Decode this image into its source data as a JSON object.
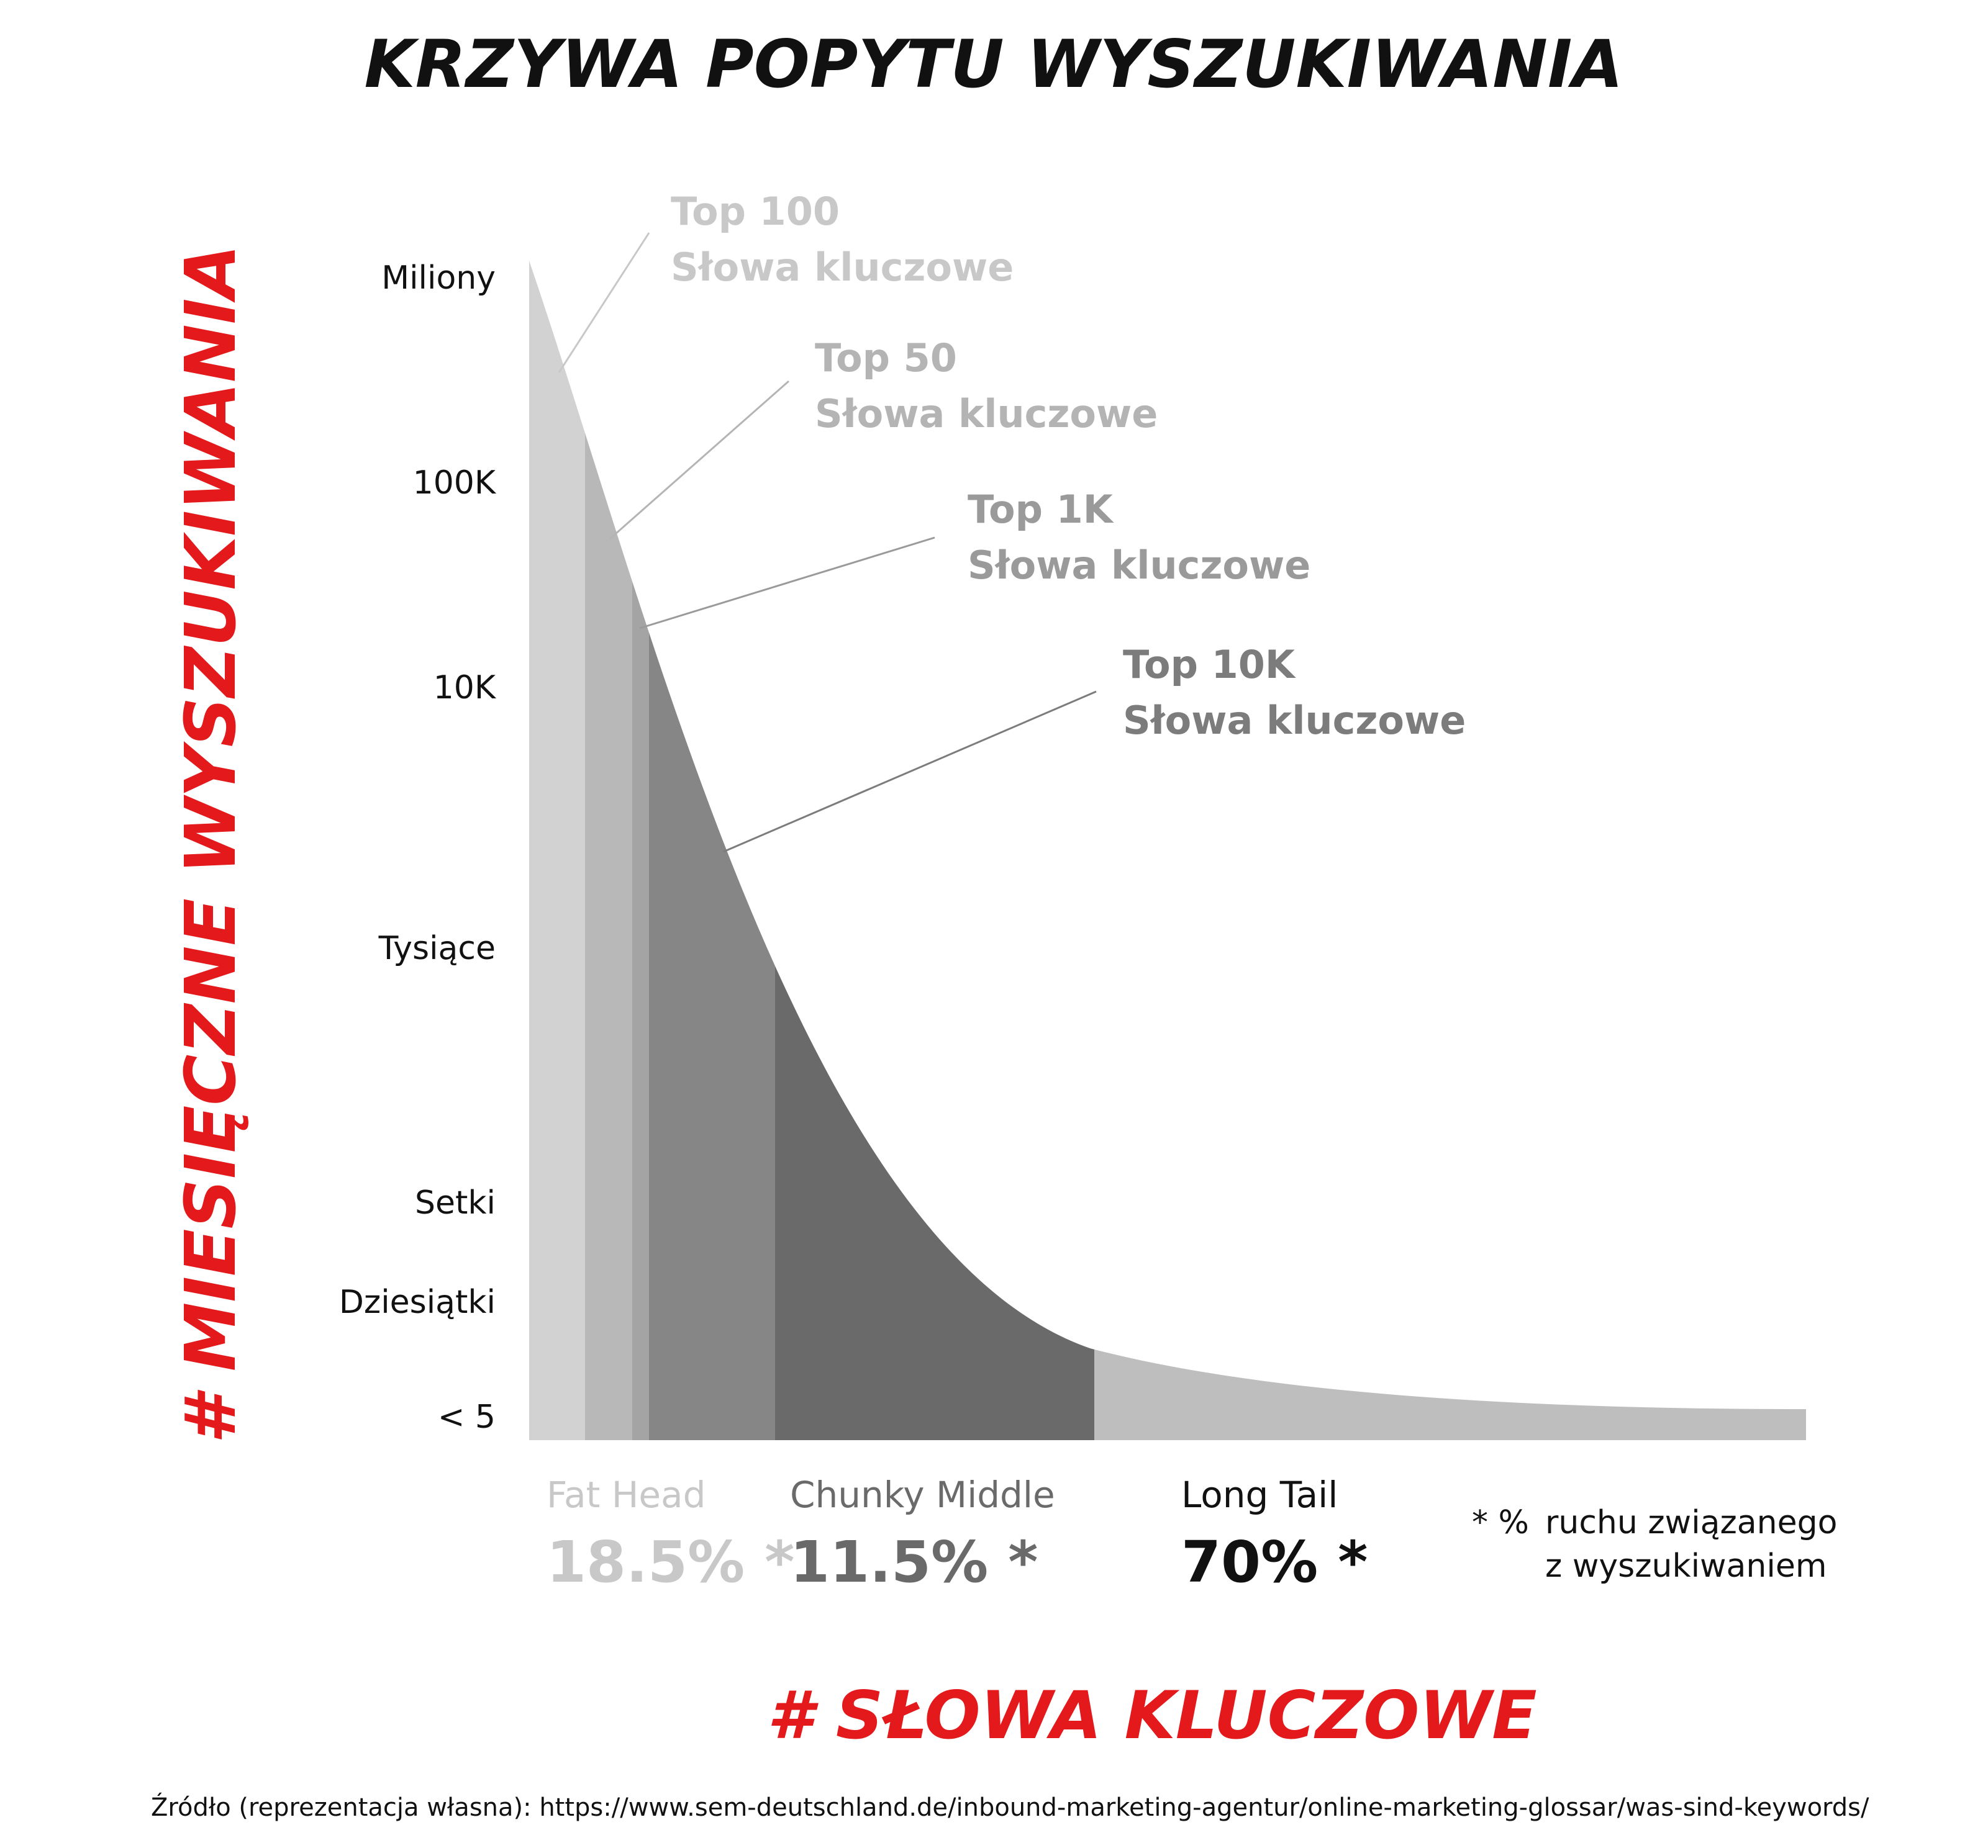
{
  "chart_data": {
    "type": "area",
    "title": "KRZYWA POPYTU WYSZUKIWANIA",
    "ylabel": "# MIESIĘCZNE  WYSZUKIWANIA",
    "xlabel": "# SŁOWA KLUCZOWE",
    "y_scale": "ordinal",
    "y_ticks": [
      "Miliony",
      "100K",
      "10K",
      "Tysiące",
      "Setki",
      "Dziesiątki",
      "< 5"
    ],
    "callouts": [
      {
        "line1": "Top 100",
        "line2": "Słowa kluczowe",
        "color": "#c8c8c8"
      },
      {
        "line1": "Top 50",
        "line2": "Słowa kluczowe",
        "color": "#b4b4b4"
      },
      {
        "line1": "Top 1K",
        "line2": "Słowa kluczowe",
        "color": "#9a9a9a"
      },
      {
        "line1": "Top 10K",
        "line2": "Słowa kluczowe",
        "color": "#7c7c7c"
      }
    ],
    "segments": [
      {
        "name": "Fat Head",
        "value": "18.5% *",
        "share": 18.5,
        "color": "#c8c8c8"
      },
      {
        "name": "Chunky Middle",
        "value": "11.5% *",
        "share": 11.5,
        "color": "#6a6a6a"
      },
      {
        "name": "Long Tail",
        "value": "70% *",
        "share": 70,
        "color": "#bebebe"
      }
    ],
    "area_colors": [
      "#d2d2d2",
      "#b8b8b8",
      "#a4a4a4",
      "#868686",
      "#6a6a6a",
      "#bebebe"
    ],
    "footnote": {
      "marker": "* %",
      "line1": "ruchu związanego",
      "line2": "z wyszukiwaniem"
    },
    "source": "Źródło (reprezentacja własna): https://www.sem-deutschland.de/inbound-marketing-agentur/online-marketing-glossar/was-sind-keywords/"
  }
}
